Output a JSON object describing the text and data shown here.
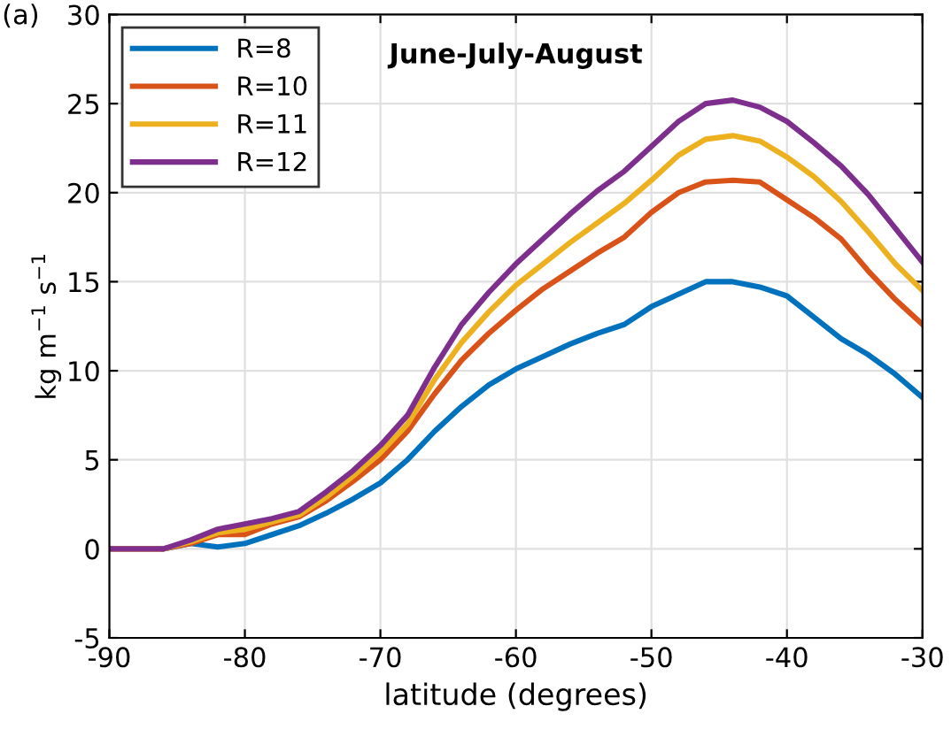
{
  "chart_data": {
    "type": "line",
    "title": "June-July-August",
    "xlabel": "latitude (degrees)",
    "ylabel": "kg m$^{−1}$ s$^{−1}$",
    "annotations": [
      "(a)"
    ],
    "x": [
      -90,
      -88,
      -86,
      -84,
      -82,
      -80,
      -78,
      -76,
      -74,
      -72,
      -70,
      -68,
      -66,
      -64,
      -62,
      -60,
      -58,
      -56,
      -54,
      -52,
      -50,
      -48,
      -46,
      -44,
      -42,
      -40,
      -38,
      -36,
      -34,
      -32,
      -30
    ],
    "series": [
      {
        "name": "R=8",
        "color": "#0072bd",
        "values": [
          null,
          null,
          0,
          0.3,
          0.1,
          0.3,
          0.8,
          1.3,
          2,
          2.8,
          3.7,
          5,
          6.6,
          8,
          9.2,
          10.1,
          10.8,
          11.5,
          12.1,
          12.6,
          13.6,
          14.3,
          15.0,
          15.0,
          14.7,
          14.2,
          13,
          11.8,
          10.9,
          9.8,
          8.5
        ]
      },
      {
        "name": "R=10",
        "color": "#d95319",
        "values": [
          0,
          0,
          0,
          0.3,
          0.8,
          0.8,
          1.4,
          1.8,
          2.7,
          3.8,
          5.0,
          6.6,
          8.7,
          10.6,
          12.1,
          13.4,
          14.6,
          15.6,
          16.6,
          17.5,
          18.9,
          20.0,
          20.6,
          20.7,
          20.6,
          19.6,
          18.6,
          17.4,
          15.6,
          14.0,
          12.6
        ]
      },
      {
        "name": "R=11",
        "color": "#edb120",
        "values": [
          0,
          0,
          0,
          0.4,
          0.9,
          1.1,
          1.5,
          1.9,
          2.9,
          4.1,
          5.4,
          7.0,
          9.5,
          11.6,
          13.3,
          14.8,
          16.0,
          17.2,
          18.3,
          19.4,
          20.7,
          22.1,
          23.0,
          23.2,
          22.9,
          22.0,
          20.9,
          19.5,
          17.8,
          16.0,
          14.5
        ]
      },
      {
        "name": "R=12",
        "color": "#7e2f8e",
        "values": [
          0,
          0,
          0,
          0.5,
          1.1,
          1.4,
          1.7,
          2.1,
          3.2,
          4.4,
          5.8,
          7.5,
          10.2,
          12.6,
          14.4,
          16.0,
          17.4,
          18.8,
          20.1,
          21.2,
          22.6,
          24.0,
          25.0,
          25.2,
          24.8,
          24.0,
          22.8,
          21.5,
          19.9,
          18.0,
          16.1
        ]
      }
    ],
    "xlim": [
      -90,
      -30
    ],
    "xticks": [
      -90,
      -80,
      -70,
      -60,
      -50,
      -40,
      -30
    ],
    "ylim": [
      -5,
      30
    ],
    "yticks": [
      -5,
      0,
      5,
      10,
      15,
      20,
      25,
      30
    ],
    "grid": true,
    "legend": "top left",
    "line_style": "solid"
  }
}
